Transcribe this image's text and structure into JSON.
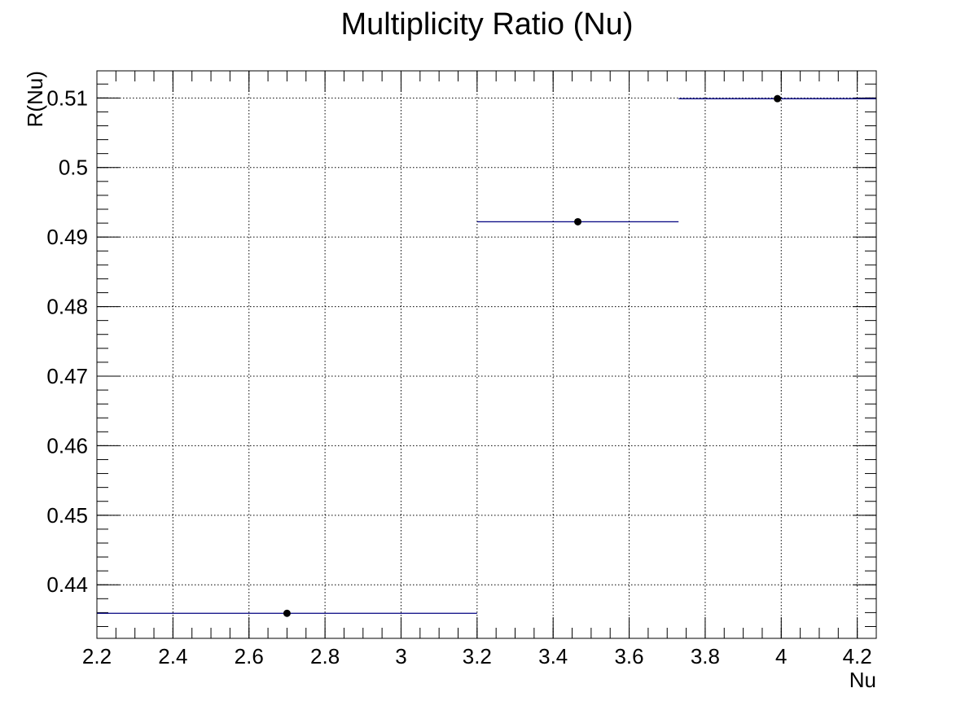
{
  "chart_data": {
    "type": "scatter",
    "title": "Multiplicity Ratio (Nu)",
    "xlabel": "Nu",
    "ylabel": "R(Nu)",
    "xlim": [
      2.2,
      4.25
    ],
    "ylim": [
      0.4323,
      0.5139
    ],
    "grid": true,
    "x_ticks": [
      2.2,
      2.4,
      2.6,
      2.8,
      3.0,
      3.2,
      3.4,
      3.6,
      3.8,
      4.0,
      4.2
    ],
    "x_tick_labels": [
      "2.2",
      "2.4",
      "2.6",
      "2.8",
      "3",
      "3.2",
      "3.4",
      "3.6",
      "3.8",
      "4",
      "4.2"
    ],
    "y_ticks": [
      0.44,
      0.45,
      0.46,
      0.47,
      0.48,
      0.49,
      0.5,
      0.51
    ],
    "y_tick_labels": [
      "0.44",
      "0.45",
      "0.46",
      "0.47",
      "0.48",
      "0.49",
      "0.5",
      "0.51"
    ],
    "series": [
      {
        "points": [
          {
            "x": 2.7,
            "y": 0.4359,
            "xerr_low": 2.2,
            "xerr_high": 3.2
          },
          {
            "x": 3.465,
            "y": 0.4922,
            "xerr_low": 3.2,
            "xerr_high": 3.73
          },
          {
            "x": 3.99,
            "y": 0.5099,
            "xerr_low": 3.73,
            "xerr_high": 4.25
          }
        ],
        "marker_color": "#000000",
        "errorbar_color": "#000080"
      }
    ]
  }
}
